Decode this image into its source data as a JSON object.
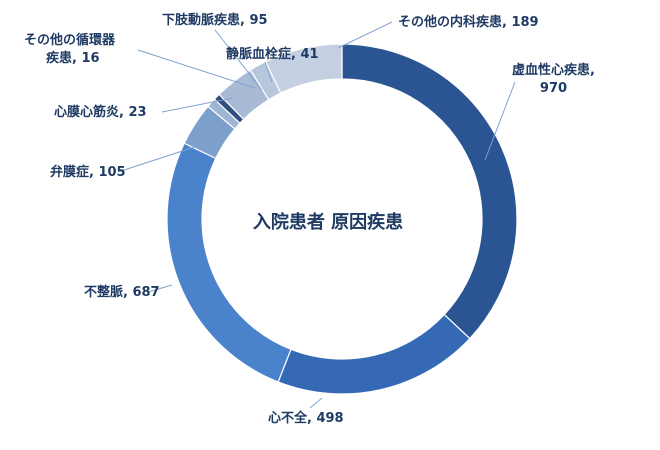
{
  "chart_data": {
    "type": "pie",
    "title": "入院患者 原因疾患",
    "donut": true,
    "slices": [
      {
        "label": "虚血性心疾患",
        "value": 970,
        "color": "#2b5592"
      },
      {
        "label": "心不全",
        "value": 498,
        "color": "#3569b5"
      },
      {
        "label": "不整脈",
        "value": 687,
        "color": "#4a82cc"
      },
      {
        "label": "弁膜症",
        "value": 105,
        "color": "#7d9fcb"
      },
      {
        "label": "心膜心筋炎",
        "value": 23,
        "color": "#9fb5d5"
      },
      {
        "label": "その他の循環器疾患",
        "value": 16,
        "color": "#2f4f80"
      },
      {
        "label": "下肢動脈疾患",
        "value": 95,
        "color": "#a8bad4"
      },
      {
        "label": "静脈血栓症",
        "value": 41,
        "color": "#b6c6dd"
      },
      {
        "label": "その他の内科疾患",
        "value": 189,
        "color": "#c4d0e2"
      }
    ]
  },
  "labels": {
    "ihd_name": "虚血性心疾患,",
    "ihd_value": "970",
    "hf": "心不全, 498",
    "arr": "不整脈, 687",
    "valve": "弁膜症, 105",
    "peri": "心膜心筋炎, 23",
    "other_cv_1": "その他の循環器",
    "other_cv_2": "疾患, 16",
    "pad": "下肢動脈疾患, 95",
    "vte": "静脈血栓症, 41",
    "other_im": "その他の内科疾患, 189"
  }
}
